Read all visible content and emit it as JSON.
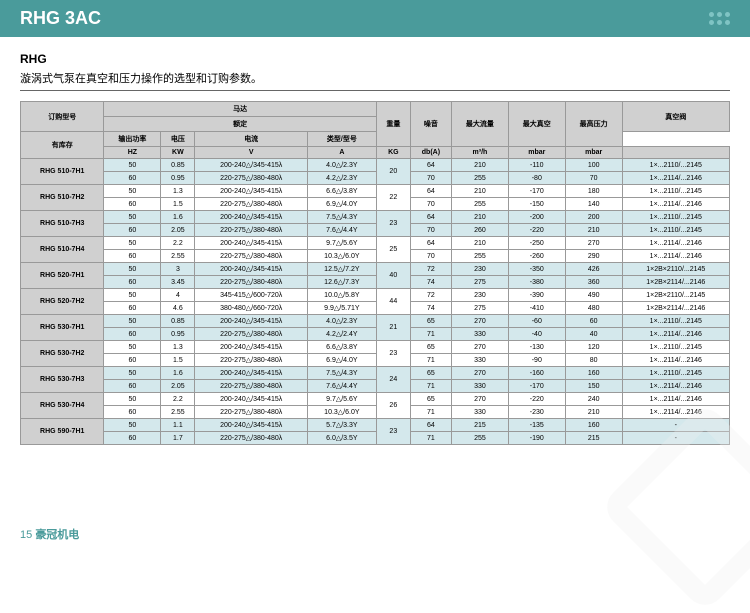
{
  "header": {
    "title": "RHG 3AC"
  },
  "subtitle": "RHG",
  "desc": "漩涡式气泵在真空和压力操作的选型和订购参数。",
  "footer": {
    "page": "15",
    "brand": "豪冠机电"
  },
  "table": {
    "headers": {
      "model": "订购型号",
      "stock": "有库存",
      "motor": "马达",
      "rated": "额定",
      "power": "输出功率",
      "voltage": "电压",
      "current": "电流",
      "weight": "重量",
      "noise": "噪音",
      "maxflow": "最大流量",
      "maxvac": "最大真空",
      "maxpres": "最高压力",
      "vacvalve": "真空阀",
      "type": "类型/型号",
      "hz": "HZ",
      "kw": "KW",
      "v": "V",
      "a": "A",
      "kg": "KG",
      "dba": "db(A)",
      "m3h": "m³/h",
      "mbar1": "mbar",
      "mbar2": "mbar"
    },
    "rows": [
      {
        "m": "RHG 510-7H1",
        "c": "bl",
        "hz": [
          "50",
          "60"
        ],
        "kw": [
          "0.85",
          "0.95"
        ],
        "v": [
          "200-240△/345-415λ",
          "220-275△/380-480λ"
        ],
        "a": [
          "4.0△/2.3Y",
          "4.2△/2.3Y"
        ],
        "kg": "20",
        "db": [
          "64",
          "70"
        ],
        "fl": [
          "210",
          "255"
        ],
        "vac": [
          "-110",
          "-80"
        ],
        "pr": [
          "100",
          "70"
        ],
        "vt": [
          "1×...2110/...2145",
          "1×...2114/...2146"
        ]
      },
      {
        "m": "RHG 510-7H2",
        "c": "wh",
        "hz": [
          "50",
          "60"
        ],
        "kw": [
          "1.3",
          "1.5"
        ],
        "v": [
          "200-240△/345-415λ",
          "220-275△/380-480λ"
        ],
        "a": [
          "6.6△/3.8Y",
          "6.9△/4.0Y"
        ],
        "kg": "22",
        "db": [
          "64",
          "70"
        ],
        "fl": [
          "210",
          "255"
        ],
        "vac": [
          "-170",
          "-150"
        ],
        "pr": [
          "180",
          "140"
        ],
        "vt": [
          "1×...2110/...2145",
          "1×...2114/...2146"
        ]
      },
      {
        "m": "RHG 510-7H3",
        "c": "bl",
        "hz": [
          "50",
          "60"
        ],
        "kw": [
          "1.6",
          "2.05"
        ],
        "v": [
          "200-240△/345-415λ",
          "220-275△/380-480λ"
        ],
        "a": [
          "7.5△/4.3Y",
          "7.6△/4.4Y"
        ],
        "kg": "23",
        "db": [
          "64",
          "70"
        ],
        "fl": [
          "210",
          "260"
        ],
        "vac": [
          "-200",
          "-220"
        ],
        "pr": [
          "200",
          "210"
        ],
        "vt": [
          "1×...2110/...2145",
          "1×...2110/...2145"
        ]
      },
      {
        "m": "RHG 510-7H4",
        "c": "wh",
        "hz": [
          "50",
          "60"
        ],
        "kw": [
          "2.2",
          "2.55"
        ],
        "v": [
          "200-240△/345-415λ",
          "220-275△/380-480λ"
        ],
        "a": [
          "9.7△/5.6Y",
          "10.3△/6.0Y"
        ],
        "kg": "25",
        "db": [
          "64",
          "70"
        ],
        "fl": [
          "210",
          "255"
        ],
        "vac": [
          "-250",
          "-260"
        ],
        "pr": [
          "270",
          "290"
        ],
        "vt": [
          "1×...2114/...2146",
          "1×...2114/...2146"
        ]
      },
      {
        "m": "RHG 520-7H1",
        "c": "bl",
        "hz": [
          "50",
          "60"
        ],
        "kw": [
          "3",
          "3.45"
        ],
        "v": [
          "200-240△/345-415λ",
          "220-275△/380-480λ"
        ],
        "a": [
          "12.5△/7.2Y",
          "12.6△/7.3Y"
        ],
        "kg": "40",
        "db": [
          "72",
          "74"
        ],
        "fl": [
          "230",
          "275"
        ],
        "vac": [
          "-350",
          "-380"
        ],
        "pr": [
          "426",
          "360"
        ],
        "vt": [
          "1×2B×2110/...2145",
          "1×2B×2114/...2146"
        ]
      },
      {
        "m": "RHG 520-7H2",
        "c": "wh",
        "hz": [
          "50",
          "60"
        ],
        "kw": [
          "4",
          "4.6"
        ],
        "v": [
          "345-415△/600-720λ",
          "380-480△/660-720λ"
        ],
        "a": [
          "10.0△/5.8Y",
          "9.9△/5.71Y"
        ],
        "kg": "44",
        "db": [
          "72",
          "74"
        ],
        "fl": [
          "230",
          "275"
        ],
        "vac": [
          "-390",
          "-410"
        ],
        "pr": [
          "490",
          "480"
        ],
        "vt": [
          "1×2B×2110/...2145",
          "1×2B×2114/...2146"
        ]
      },
      {
        "m": "RHG 530-7H1",
        "c": "bl",
        "hz": [
          "50",
          "60"
        ],
        "kw": [
          "0.85",
          "0.95"
        ],
        "v": [
          "200-240△/345-415λ",
          "220-275△/380-480λ"
        ],
        "a": [
          "4.0△/2.3Y",
          "4.2△/2.4Y"
        ],
        "kg": "21",
        "db": [
          "65",
          "71"
        ],
        "fl": [
          "270",
          "330"
        ],
        "vac": [
          "-60",
          "-40"
        ],
        "pr": [
          "60",
          "40"
        ],
        "vt": [
          "1×...2110/...2145",
          "1×...2114/...2146"
        ]
      },
      {
        "m": "RHG 530-7H2",
        "c": "wh",
        "hz": [
          "50",
          "60"
        ],
        "kw": [
          "1.3",
          "1.5"
        ],
        "v": [
          "200-240△/345-415λ",
          "220-275△/380-480λ"
        ],
        "a": [
          "6.6△/3.8Y",
          "6.9△/4.0Y"
        ],
        "kg": "23",
        "db": [
          "65",
          "71"
        ],
        "fl": [
          "270",
          "330"
        ],
        "vac": [
          "-130",
          "-90"
        ],
        "pr": [
          "120",
          "80"
        ],
        "vt": [
          "1×...2110/...2145",
          "1×...2114/...2146"
        ]
      },
      {
        "m": "RHG 530-7H3",
        "c": "bl",
        "hz": [
          "50",
          "60"
        ],
        "kw": [
          "1.6",
          "2.05"
        ],
        "v": [
          "200-240△/345-415λ",
          "220-275△/380-480λ"
        ],
        "a": [
          "7.5△/4.3Y",
          "7.6△/4.4Y"
        ],
        "kg": "24",
        "db": [
          "65",
          "71"
        ],
        "fl": [
          "270",
          "330"
        ],
        "vac": [
          "-160",
          "-170"
        ],
        "pr": [
          "160",
          "150"
        ],
        "vt": [
          "1×...2110/...2145",
          "1×...2114/...2146"
        ]
      },
      {
        "m": "RHG 530-7H4",
        "c": "wh",
        "hz": [
          "50",
          "60"
        ],
        "kw": [
          "2.2",
          "2.55"
        ],
        "v": [
          "200-240△/345-415λ",
          "220-275△/380-480λ"
        ],
        "a": [
          "9.7△/5.6Y",
          "10.3△/6.0Y"
        ],
        "kg": "26",
        "db": [
          "65",
          "71"
        ],
        "fl": [
          "270",
          "330"
        ],
        "vac": [
          "-220",
          "-230"
        ],
        "pr": [
          "240",
          "210"
        ],
        "vt": [
          "1×...2114/...2146",
          "1×...2114/...2146"
        ]
      },
      {
        "m": "RHG 590-7H1",
        "c": "bl",
        "hz": [
          "50",
          "60"
        ],
        "kw": [
          "1.1",
          "1.7"
        ],
        "v": [
          "200-240△/345-415λ",
          "220-275△/380-480λ"
        ],
        "a": [
          "5.7△/3.3Y",
          "6.0△/3.5Y"
        ],
        "kg": "23",
        "db": [
          "64",
          "71"
        ],
        "fl": [
          "215",
          "255"
        ],
        "vac": [
          "-135",
          "-190"
        ],
        "pr": [
          "160",
          "215"
        ],
        "vt": [
          "-",
          "-"
        ]
      }
    ]
  },
  "colors": {
    "header": "#4a9b9b",
    "blue_row": "#d4e8ec",
    "gray": "#d0d0d0",
    "border": "#999"
  }
}
